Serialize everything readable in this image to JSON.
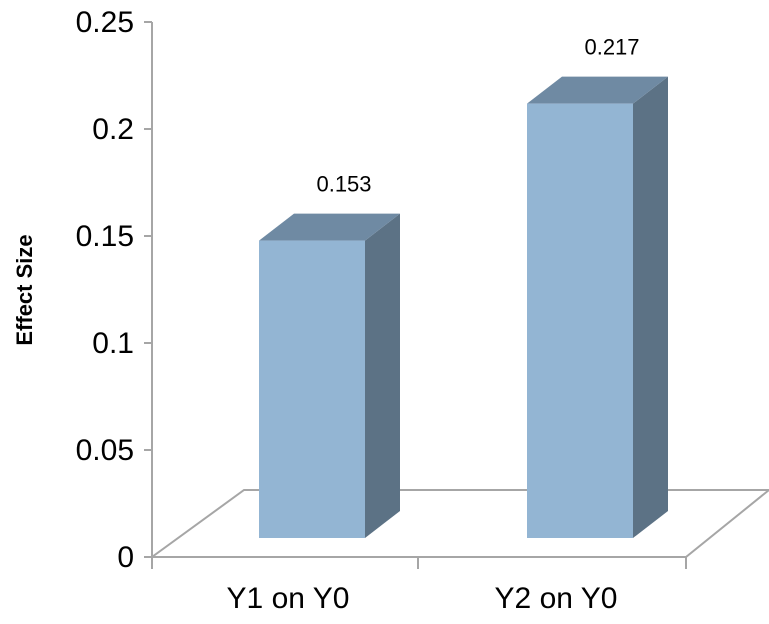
{
  "chart_data": {
    "type": "bar",
    "style": "3d-column",
    "categories": [
      "Y1 on Y0",
      "Y2 on Y0"
    ],
    "values": [
      0.153,
      0.217
    ],
    "data_labels": [
      "0.153",
      "0.217"
    ],
    "title": "",
    "xlabel": "",
    "ylabel": "Effect Size",
    "ylim": [
      0,
      0.25
    ],
    "yticks": [
      "0",
      "0.05",
      "0.1",
      "0.15",
      "0.2",
      "0.25"
    ],
    "grid": false,
    "legend": "none",
    "colors": {
      "bar_front": "#93b5d3",
      "bar_top": "#6f8aa3",
      "bar_side": "#5c7285",
      "axis": "#a6a6a6",
      "floor": "#a6a6a6"
    }
  }
}
